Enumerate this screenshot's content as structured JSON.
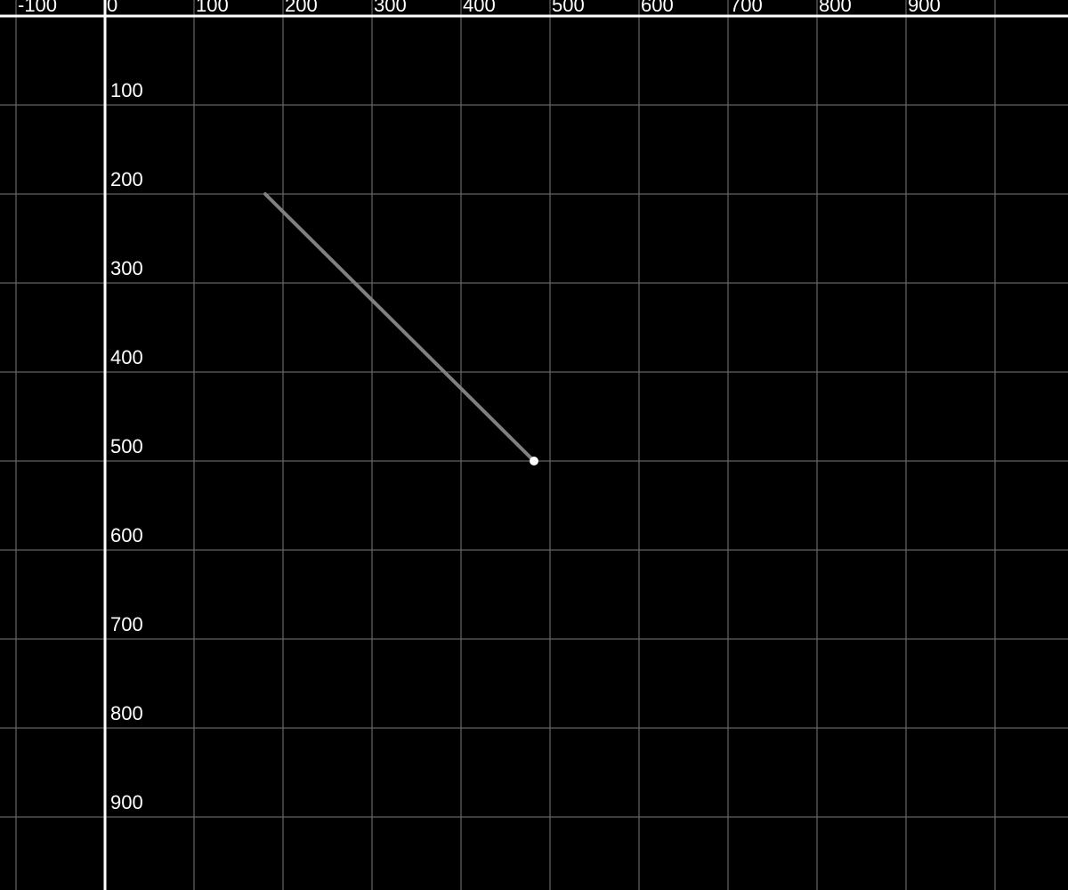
{
  "canvas": {
    "background_color": "#000000",
    "grid_color": "#777777",
    "axis_color": "#ffffff"
  },
  "axes": {
    "x_ticks": [
      "-100",
      "0",
      "100",
      "200",
      "300",
      "400",
      "500",
      "600",
      "700",
      "800",
      "900"
    ],
    "y_ticks": [
      "100",
      "200",
      "300",
      "400",
      "500",
      "600",
      "700",
      "800",
      "900"
    ],
    "grid": true
  },
  "segment": {
    "start": {
      "x": 180,
      "y": 200
    },
    "end": {
      "x": 482,
      "y": 500
    },
    "color": "#808080",
    "endpoint_marker": "dot",
    "endpoint_color": "#ffffff"
  }
}
